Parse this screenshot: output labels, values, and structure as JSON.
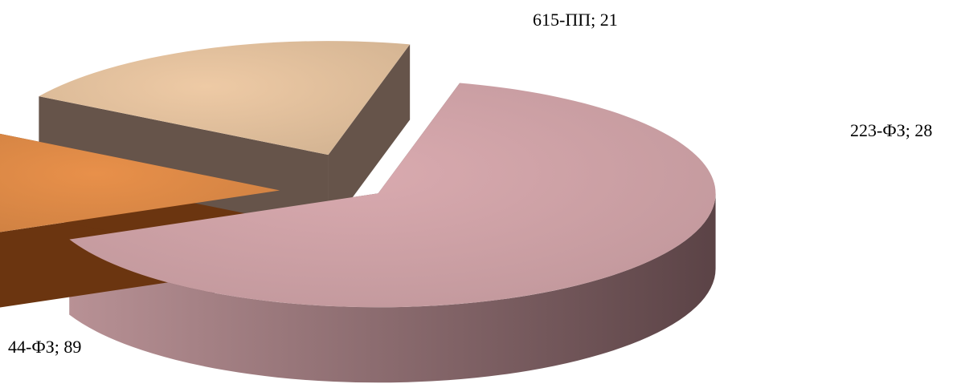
{
  "chart_data": {
    "type": "pie",
    "style": "3d-exploded",
    "title": "",
    "slices": [
      {
        "label": "44-ФЗ",
        "value": 89,
        "text": "44-ФЗ; 89",
        "color": "#d9aaaf",
        "side_color": "#5b4346"
      },
      {
        "label": "615-ПП",
        "value": 21,
        "text": "615-ПП; 21",
        "color": "#e8904a",
        "side_color": "#6b3510"
      },
      {
        "label": "223-ФЗ",
        "value": 28,
        "text": "223-ФЗ; 28",
        "color": "#eecaa5",
        "side_color": "#66544a"
      }
    ],
    "legend": "none"
  }
}
